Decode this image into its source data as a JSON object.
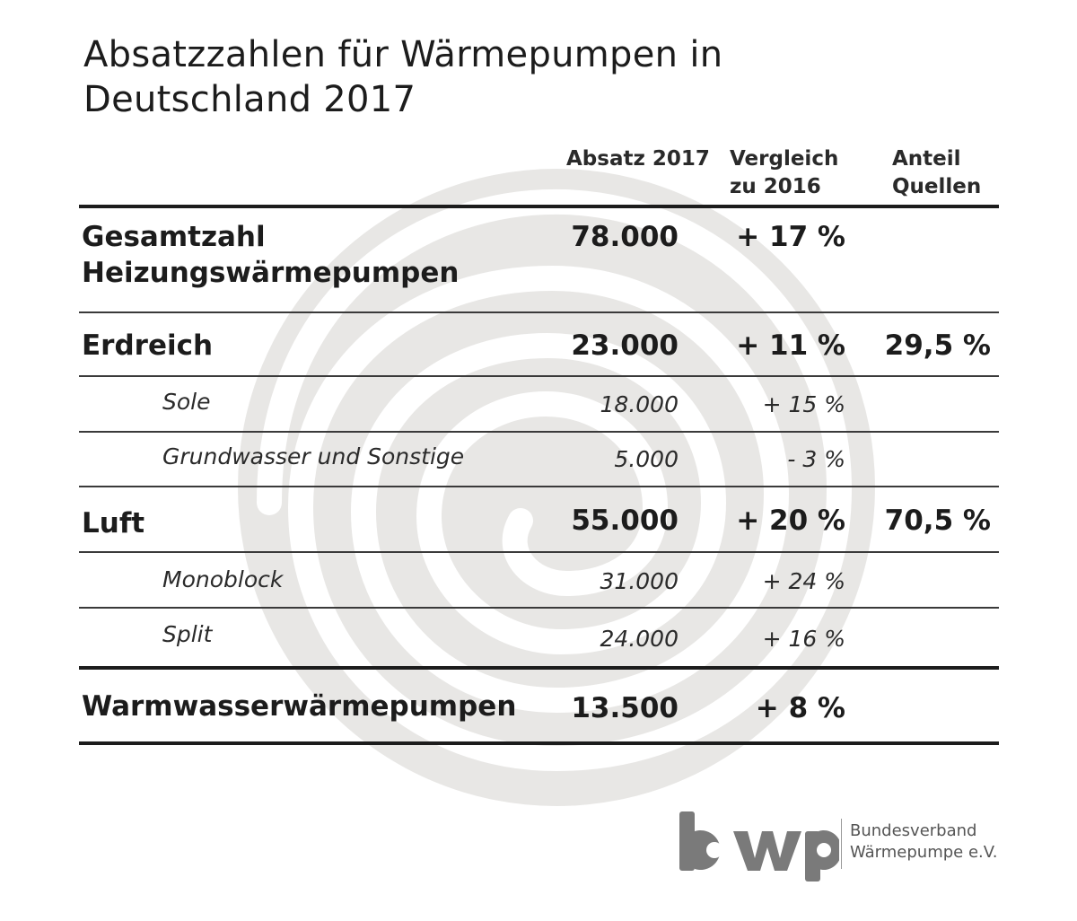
{
  "title_line1": "Absatzzahlen für Wärmepumpen in",
  "title_line2": "Deutschland 2017",
  "headers": {
    "sales": "Absatz 2017",
    "compare_line1": "Vergleich",
    "compare_line2": "zu 2016",
    "share_line1": "Anteil",
    "share_line2": "Quellen"
  },
  "rows": {
    "total": {
      "label_line1": "Gesamtzahl",
      "label_line2": "Heizungswärmepumpen",
      "sales": "78.000",
      "change": "+ 17 %"
    },
    "ground": {
      "label": "Erdreich",
      "sales": "23.000",
      "change": "+ 11 %",
      "share": "29,5 %"
    },
    "brine": {
      "label": "Sole",
      "sales": "18.000",
      "change": "+ 15 %"
    },
    "groundwater": {
      "label": "Grundwasser und Sonstige",
      "sales": "5.000",
      "change": "- 3 %"
    },
    "air": {
      "label": "Luft",
      "sales": "55.000",
      "change": "+ 20 %",
      "share": "70,5 %"
    },
    "monoblock": {
      "label": "Monoblock",
      "sales": "31.000",
      "change": "+ 24 %"
    },
    "split": {
      "label": "Split",
      "sales": "24.000",
      "change": "+ 16 %"
    },
    "hotwater": {
      "label": "Warmwasserwärmepumpen",
      "sales": "13.500",
      "change": "+ 8 %"
    }
  },
  "logo": {
    "wordmark": "bwp",
    "org_line1": "Bundesverband",
    "org_line2": "Wärmepumpe e.V.",
    "color": "#7a7a7a"
  },
  "colors": {
    "spiral": "#e8e7e5",
    "text": "#1c1c1c"
  }
}
